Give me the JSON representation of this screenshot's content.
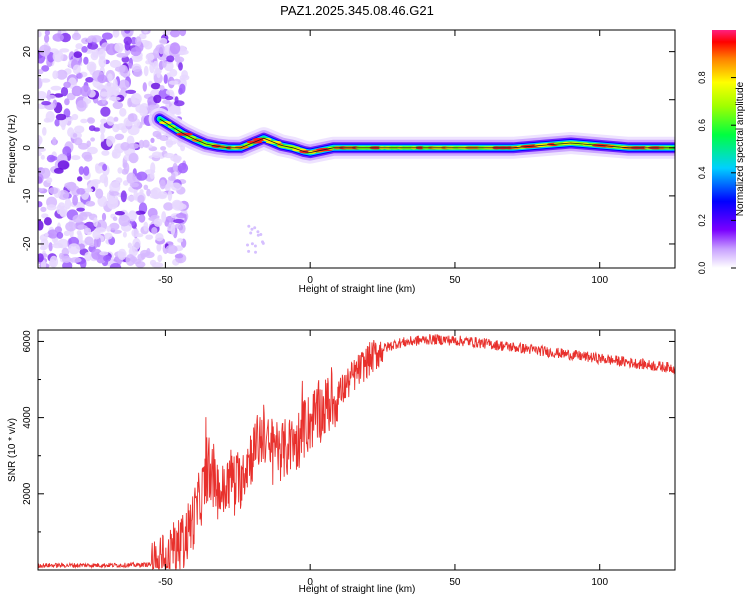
{
  "title": "PAZ1.2025.345.08.46.G21",
  "chart_data": [
    {
      "type": "heatmap",
      "title": "",
      "xlabel": "Height of straight line (km)",
      "ylabel": "Frequency (Hz)",
      "xlim": [
        -94,
        126
      ],
      "ylim": [
        -25,
        24.5
      ],
      "xticks": [
        -50,
        0,
        50,
        100
      ],
      "yticks": [
        -20,
        -10,
        0,
        10,
        20
      ],
      "ridge": {
        "description_values": "center frequency (Hz) vs height (km)",
        "x": [
          -52,
          -48,
          -44,
          -40,
          -36,
          -32,
          -28,
          -24,
          -20,
          -16,
          -14,
          -10,
          -6,
          -2,
          0,
          4,
          8,
          12,
          20,
          30,
          40,
          50,
          60,
          70,
          80,
          90,
          100,
          110,
          126
        ],
        "y": [
          6,
          4.5,
          3,
          1.8,
          0.8,
          0.3,
          0,
          0,
          1,
          2,
          1.5,
          0.5,
          0,
          -0.8,
          -1,
          -0.5,
          0,
          0,
          0,
          0,
          0,
          0,
          0,
          0,
          0.5,
          1,
          0.5,
          0,
          0
        ]
      },
      "noise_region_x": [
        -94,
        -46
      ],
      "colorbar": {
        "label": "Normalized spectral amplitude",
        "ticks": [
          "0.0",
          "0.2",
          "0.4",
          "0.6",
          "0.8"
        ],
        "range": [
          0,
          1
        ]
      }
    },
    {
      "type": "line",
      "title": "",
      "xlabel": "Height of straight line (km)",
      "ylabel": "SNR (10 * v/v)",
      "xlim": [
        -94,
        126
      ],
      "ylim": [
        0,
        6300
      ],
      "xticks": [
        -50,
        0,
        50,
        100
      ],
      "yticks": [
        2000,
        4000,
        6000
      ],
      "series": [
        {
          "name": "SNR",
          "color": "#e8302c",
          "x": [
            -94,
            -60,
            -52,
            -48,
            -44,
            -40,
            -37,
            -35,
            -33,
            -30,
            -27,
            -25,
            -22,
            -19,
            -16,
            -14,
            -12,
            -10,
            -8,
            -5,
            -3,
            0,
            3,
            6,
            10,
            15,
            20,
            25,
            30,
            35,
            40,
            45,
            50,
            55,
            60,
            70,
            80,
            90,
            100,
            110,
            120,
            126
          ],
          "y": [
            120,
            130,
            160,
            300,
            700,
            1400,
            2100,
            2700,
            2200,
            2000,
            2500,
            2200,
            2800,
            3200,
            3600,
            3100,
            3400,
            3100,
            3200,
            3300,
            3600,
            3900,
            4100,
            4300,
            4600,
            5100,
            5500,
            5800,
            5950,
            6000,
            6050,
            6050,
            6020,
            6000,
            5950,
            5850,
            5750,
            5650,
            5550,
            5450,
            5350,
            5300
          ]
        }
      ]
    }
  ]
}
